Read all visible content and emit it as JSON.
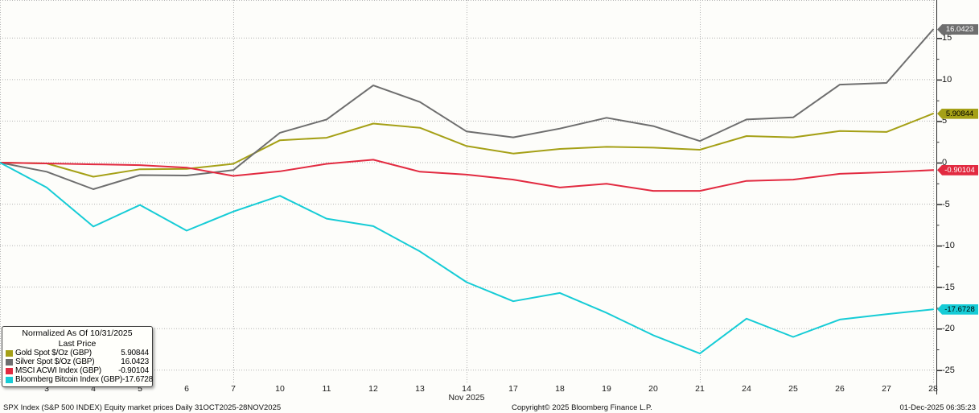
{
  "chart_data": {
    "type": "line",
    "title": "Normalized As Of 10/31/2025",
    "subtitle": "Last Price",
    "x": [
      "10/31",
      "11/3",
      "11/4",
      "11/5",
      "11/6",
      "11/7",
      "11/10",
      "11/11",
      "11/12",
      "11/13",
      "11/14",
      "11/17",
      "11/18",
      "11/19",
      "11/20",
      "11/21",
      "11/24",
      "11/25",
      "11/26",
      "11/27",
      "11/28"
    ],
    "x_tick_labels": [
      "3",
      "4",
      "5",
      "6",
      "7",
      "10",
      "11",
      "12",
      "13",
      "14",
      "17",
      "18",
      "19",
      "20",
      "21",
      "24",
      "25",
      "26",
      "27",
      "28"
    ],
    "x_axis_month_label": "Nov 2025",
    "week_end_labels": [
      "7",
      "14",
      "21",
      "28"
    ],
    "y_ticks": [
      15,
      10,
      5,
      0,
      -5,
      -10,
      -15,
      -20,
      -25
    ],
    "ylim": [
      -27,
      17.5
    ],
    "grid": "dotted",
    "legend_position": "bottom-left",
    "series": [
      {
        "name": "Gold Spot $/Oz (GBP)",
        "last_price": "5.90844",
        "color": "#a5a016",
        "tag_text_color": "#000000",
        "values": [
          0,
          -0.1,
          -1.7,
          -0.8,
          -0.75,
          -0.15,
          2.7,
          3.0,
          4.7,
          4.2,
          2.0,
          1.1,
          1.65,
          1.9,
          1.8,
          1.55,
          3.2,
          3.05,
          3.8,
          3.7,
          5.90844
        ]
      },
      {
        "name": "Silver Spot $/Oz (GBP)",
        "last_price": "16.0423",
        "color": "#6e6e6e",
        "tag_text_color": "#ffffff",
        "values": [
          0,
          -1.1,
          -3.2,
          -1.5,
          -1.55,
          -0.9,
          3.6,
          5.2,
          9.3,
          7.3,
          3.75,
          3.05,
          4.1,
          5.4,
          4.4,
          2.6,
          5.2,
          5.45,
          9.4,
          9.6,
          16.0423
        ]
      },
      {
        "name": "MSCI ACWI Index (GBP)",
        "last_price": "-0.90104",
        "color": "#e22a40",
        "tag_text_color": "#ffffff",
        "values": [
          0,
          -0.1,
          -0.2,
          -0.3,
          -0.6,
          -1.6,
          -1.05,
          -0.15,
          0.35,
          -1.1,
          -1.45,
          -2.05,
          -3.0,
          -2.55,
          -3.4,
          -3.4,
          -2.2,
          -2.05,
          -1.35,
          -1.15,
          -0.90104
        ]
      },
      {
        "name": "Bloomberg Bitcoin Index (GBP)",
        "last_price": "-17.6728",
        "color": "#16ccd6",
        "tag_text_color": "#000000",
        "values": [
          0,
          -3.0,
          -7.7,
          -5.1,
          -8.2,
          -5.9,
          -4.0,
          -6.75,
          -7.65,
          -10.7,
          -14.4,
          -16.7,
          -15.7,
          -18.1,
          -20.8,
          -23.0,
          -18.8,
          -21.0,
          -18.9,
          -18.25,
          -17.6728
        ]
      }
    ]
  },
  "footer": {
    "left": "SPX Index (S&P 500 INDEX) Equity market prices Daily 31OCT2025-28NOV2025",
    "center": "Copyright© 2025 Bloomberg Finance L.P.",
    "right": "01-Dec-2025 06:35:23"
  }
}
